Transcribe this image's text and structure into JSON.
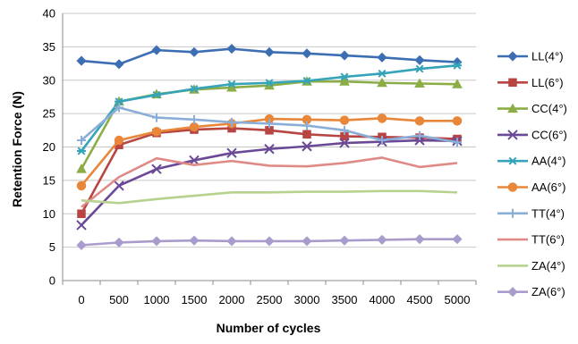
{
  "chart_data": {
    "type": "line",
    "xlabel": "Number of cycles",
    "ylabel": "Retention Force (N)",
    "categories": [
      "0",
      "500",
      "1000",
      "1500",
      "2000",
      "2500",
      "3000",
      "3500",
      "4000",
      "4500",
      "5000"
    ],
    "ylim": [
      0,
      40
    ],
    "yticks": [
      0,
      5,
      10,
      15,
      20,
      25,
      30,
      35,
      40
    ],
    "grid": true,
    "legend_position": "right",
    "series": [
      {
        "name": "LL(4°)",
        "color": "#3c6eb4",
        "marker": "diamond",
        "values": [
          32.9,
          32.4,
          34.5,
          34.2,
          34.7,
          34.2,
          34.0,
          33.7,
          33.4,
          33.0,
          32.7
        ]
      },
      {
        "name": "LL(6°)",
        "color": "#b84542",
        "marker": "square",
        "values": [
          10.0,
          20.3,
          22.1,
          22.6,
          22.8,
          22.5,
          21.9,
          21.6,
          21.5,
          21.4,
          21.2
        ]
      },
      {
        "name": "CC(4°)",
        "color": "#8cad46",
        "marker": "triangle",
        "values": [
          16.7,
          26.8,
          27.9,
          28.6,
          28.9,
          29.2,
          29.8,
          29.8,
          29.6,
          29.5,
          29.4
        ]
      },
      {
        "name": "CC(6°)",
        "color": "#6a4a96",
        "marker": "x",
        "values": [
          8.3,
          14.2,
          16.7,
          18.0,
          19.1,
          19.7,
          20.1,
          20.6,
          20.8,
          21.0,
          20.9
        ]
      },
      {
        "name": "AA(4°)",
        "color": "#35a3b8",
        "marker": "asterisk",
        "values": [
          19.4,
          26.8,
          27.8,
          28.7,
          29.4,
          29.6,
          29.9,
          30.5,
          31.0,
          31.7,
          32.2
        ]
      },
      {
        "name": "AA(6°)",
        "color": "#e8873a",
        "marker": "circle",
        "values": [
          14.2,
          21.0,
          22.3,
          23.0,
          23.5,
          24.2,
          24.1,
          24.0,
          24.3,
          23.9,
          23.9
        ]
      },
      {
        "name": "TT(4°)",
        "color": "#8aaed8",
        "marker": "plus",
        "values": [
          21.0,
          25.9,
          24.4,
          24.1,
          23.7,
          23.5,
          23.2,
          22.5,
          21.0,
          21.7,
          20.7
        ]
      },
      {
        "name": "TT(6°)",
        "color": "#e08a88",
        "marker": "none",
        "values": [
          11.0,
          15.5,
          18.3,
          17.3,
          17.9,
          17.2,
          17.1,
          17.6,
          18.4,
          17.0,
          17.6
        ]
      },
      {
        "name": "ZA(4°)",
        "color": "#b7d18e",
        "marker": "none",
        "values": [
          12.0,
          11.6,
          12.2,
          12.7,
          13.2,
          13.2,
          13.3,
          13.3,
          13.4,
          13.4,
          13.2
        ]
      },
      {
        "name": "ZA(6°)",
        "color": "#a99ccc",
        "marker": "diamond",
        "values": [
          5.3,
          5.7,
          5.9,
          6.0,
          5.9,
          5.9,
          5.9,
          6.0,
          6.1,
          6.2,
          6.2
        ]
      }
    ]
  }
}
